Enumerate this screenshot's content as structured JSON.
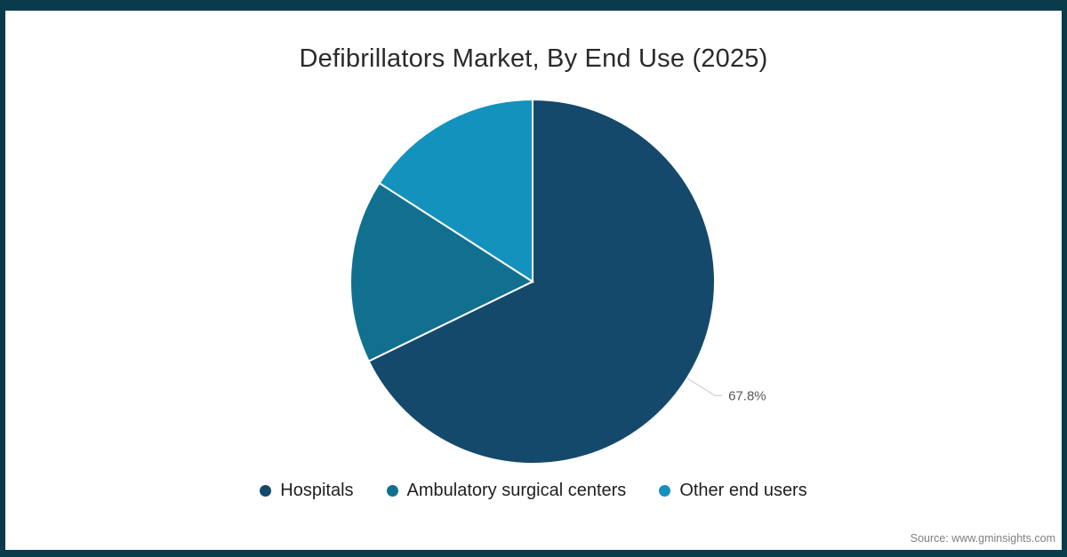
{
  "title": "Defibrillators Market, By End Use (2025)",
  "chart_data": {
    "type": "pie",
    "title": "Defibrillators Market, By End Use (2025)",
    "categories": [
      "Hospitals",
      "Ambulatory surgical centers",
      "Other end users"
    ],
    "values": [
      67.8,
      16.3,
      15.9
    ],
    "unit": "percent",
    "colors": [
      "#14496b",
      "#11708f",
      "#1492be"
    ],
    "data_label": "67.8%",
    "labeled_slice_index": 0,
    "start_angle_deg": 0,
    "direction": "clockwise",
    "legend_position": "bottom",
    "slice_stroke_color": "#ffffff",
    "leader_line_color": "#d2d2d2"
  },
  "frame_color": "#093b4b",
  "footer": {
    "source": "Source: www.gminsights.com"
  }
}
